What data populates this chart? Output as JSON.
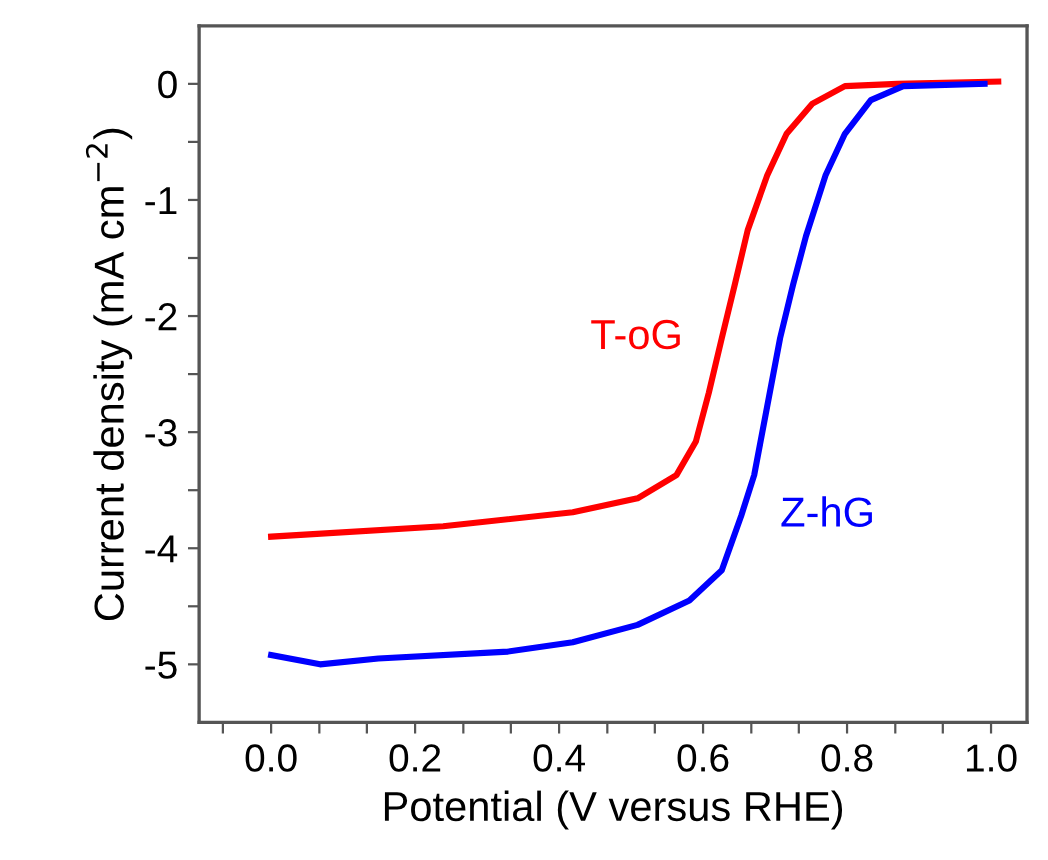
{
  "chart_data": {
    "type": "line",
    "xlabel": "Potential (V versus RHE)",
    "ylabel": "Current density (mA cm$^{−2}$)",
    "xlim": [
      -0.1,
      1.05
    ],
    "ylim": [
      -5.5,
      0.5
    ],
    "xticks": [
      {
        "value": -0.067,
        "label": null
      },
      {
        "value": 0,
        "label": "0.0"
      },
      {
        "value": 0.067,
        "label": null
      },
      {
        "value": 0.133,
        "label": null
      },
      {
        "value": 0.2,
        "label": "0.2"
      },
      {
        "value": 0.267,
        "label": null
      },
      {
        "value": 0.333,
        "label": null
      },
      {
        "value": 0.4,
        "label": "0.4"
      },
      {
        "value": 0.467,
        "label": null
      },
      {
        "value": 0.533,
        "label": null
      },
      {
        "value": 0.6,
        "label": "0.6"
      },
      {
        "value": 0.667,
        "label": null
      },
      {
        "value": 0.733,
        "label": null
      },
      {
        "value": 0.8,
        "label": "0.8"
      },
      {
        "value": 0.867,
        "label": null
      },
      {
        "value": 0.933,
        "label": null
      },
      {
        "value": 1.0,
        "label": "1.0"
      }
    ],
    "yticks": [
      0,
      {
        "value": -0.5,
        "label": null
      },
      -1,
      {
        "value": -1.5,
        "label": null
      },
      -2,
      {
        "value": -2.5,
        "label": null
      },
      -3,
      {
        "value": -3.5,
        "label": null
      },
      -4,
      {
        "value": -4.5,
        "label": null
      },
      -5
    ],
    "grid": false,
    "legend": false,
    "marker": "none",
    "line_style": "solid",
    "series": [
      {
        "name": "T-oG",
        "color": "#ff0000",
        "x": [
          0,
          0.239,
          0.419,
          0.509,
          0.563,
          0.59,
          0.608,
          0.626,
          0.644,
          0.662,
          0.689,
          0.716,
          0.752,
          0.797,
          0.87,
          1.01
        ],
        "values": [
          -3.9,
          -3.81,
          -3.69,
          -3.57,
          -3.37,
          -3.08,
          -2.66,
          -2.19,
          -1.73,
          -1.26,
          -0.79,
          -0.43,
          -0.17,
          -0.02,
          0.0,
          0.02
        ]
      },
      {
        "name": "Z-hG",
        "color": "#0000ff",
        "x": [
          0,
          0.068,
          0.149,
          0.329,
          0.419,
          0.509,
          0.581,
          0.626,
          0.653,
          0.671,
          0.689,
          0.707,
          0.725,
          0.743,
          0.77,
          0.797,
          0.833,
          0.878,
          0.991
        ],
        "values": [
          -4.92,
          -5.0,
          -4.95,
          -4.89,
          -4.81,
          -4.66,
          -4.45,
          -4.19,
          -3.72,
          -3.37,
          -2.78,
          -2.19,
          -1.73,
          -1.31,
          -0.79,
          -0.43,
          -0.14,
          -0.02,
          0.0
        ]
      }
    ]
  }
}
